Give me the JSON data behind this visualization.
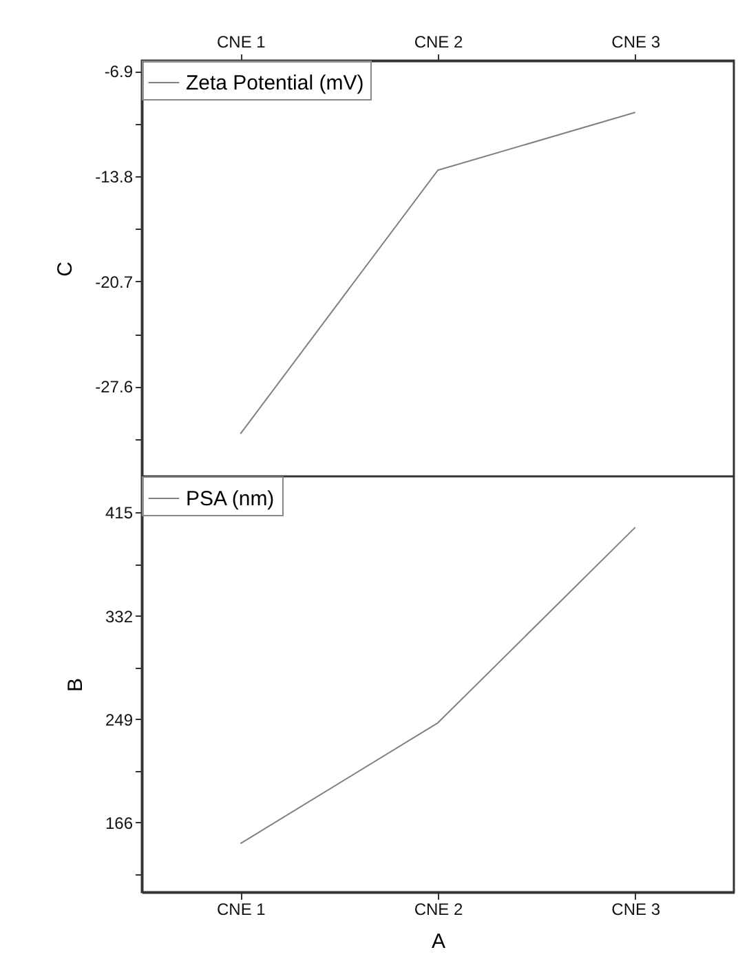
{
  "chart_data": [
    {
      "type": "line",
      "ylabel": "C",
      "categories": [
        "CNE 1",
        "CNE 2",
        "CNE 3"
      ],
      "series": [
        {
          "name": "Zeta Potential (mV)",
          "color": "#808080",
          "values": [
            -30.7,
            -13.4,
            -9.6
          ]
        }
      ],
      "ylim": [
        -33.5,
        -6.2
      ],
      "yticks": [
        -6.9,
        {
          "value": -10.35,
          "label": null
        },
        -13.8,
        {
          "value": -17.25,
          "label": null
        },
        -20.7,
        {
          "value": -24.15,
          "label": null
        },
        -27.6,
        {
          "value": -31.05,
          "label": null
        }
      ],
      "legend": "top left",
      "marker": "none",
      "line_style": "solid",
      "grid": false
    },
    {
      "type": "line",
      "xlabel": "A",
      "ylabel": "B",
      "categories": [
        "CNE 1",
        "CNE 2",
        "CNE 3"
      ],
      "series": [
        {
          "name": "PSA (nm)",
          "color": "#808080",
          "values": [
            149,
            246,
            403
          ]
        }
      ],
      "ylim": [
        110,
        444
      ],
      "yticks": [
        {
          "value": 124.5,
          "label": null
        },
        166,
        {
          "value": 207.5,
          "label": null
        },
        249,
        {
          "value": 290.5,
          "label": null
        },
        332,
        {
          "value": 373.5,
          "label": null
        },
        415
      ],
      "legend": "top left",
      "marker": "none",
      "line_style": "solid",
      "grid": false
    }
  ]
}
